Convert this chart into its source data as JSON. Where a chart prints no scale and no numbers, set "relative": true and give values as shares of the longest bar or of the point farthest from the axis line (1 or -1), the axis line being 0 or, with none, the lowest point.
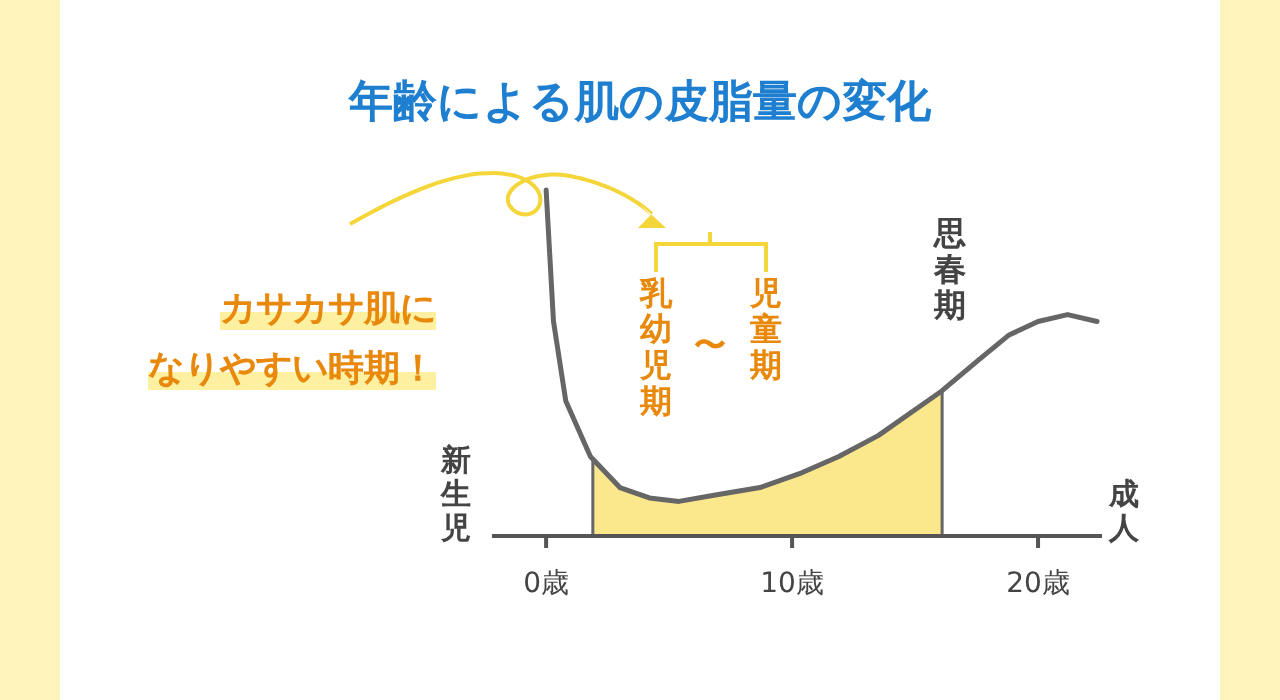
{
  "chart_data": {
    "type": "line",
    "title": "年齢による肌の皮脂量の変化",
    "relative": true,
    "x": [
      0,
      0.3,
      0.8,
      1.8,
      3.0,
      4.2,
      5.4,
      7.0,
      8.7,
      10.3,
      11.9,
      13.5,
      15.1,
      16.1,
      17.6,
      18.8,
      20.0,
      21.2,
      22.4
    ],
    "series": [
      {
        "type": "area",
        "color": "#fbe88c",
        "x": [
          1.9,
          3.0,
          4.2,
          5.4,
          7.0,
          8.7,
          10.3,
          11.9,
          13.5,
          15.1,
          16.1
        ],
        "values": [
          0.22,
          0.14,
          0.11,
          0.1,
          0.12,
          0.14,
          0.18,
          0.23,
          0.29,
          0.37,
          0.42
        ]
      },
      {
        "color": "#666666",
        "values": [
          1.0,
          0.62,
          0.39,
          0.23,
          0.14,
          0.11,
          0.1,
          0.12,
          0.14,
          0.18,
          0.23,
          0.29,
          0.37,
          0.42,
          0.51,
          0.58,
          0.62,
          0.64,
          0.62
        ]
      }
    ],
    "xlim": [
      -2.2,
      22.6
    ],
    "xticks": [
      {
        "value": 0,
        "label": "0歳"
      },
      {
        "value": 10,
        "label": "10歳"
      },
      {
        "value": 20,
        "label": "20歳"
      }
    ],
    "annotations": [
      "カサカサ肌に",
      "なりやすい時期！",
      "乳幼児期",
      "〜",
      "児童期",
      "思春期",
      "新生児",
      "成人"
    ]
  }
}
